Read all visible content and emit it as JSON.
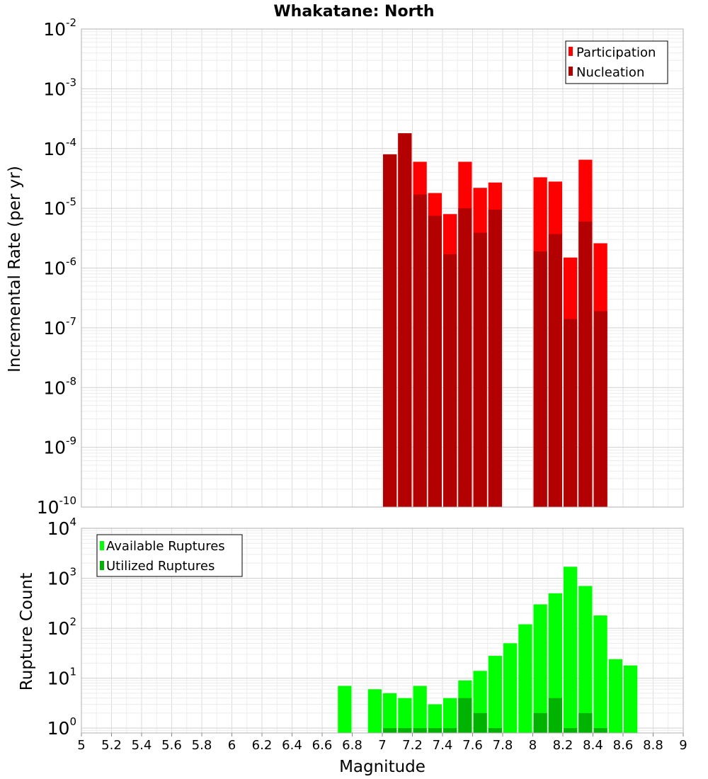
{
  "chart_data": [
    {
      "type": "bar",
      "title": "Whakatane: North",
      "ylabel": "Incremental Rate (per yr)",
      "xlabel": "",
      "yscale": "log",
      "xlim": [
        5,
        9
      ],
      "ylim": [
        1e-10,
        0.01
      ],
      "ytick_labels": [
        {
          "base": "10",
          "exp": "-10"
        },
        {
          "base": "10",
          "exp": "-9"
        },
        {
          "base": "10",
          "exp": "-8"
        },
        {
          "base": "10",
          "exp": "-7"
        },
        {
          "base": "10",
          "exp": "-6"
        },
        {
          "base": "10",
          "exp": "-5"
        },
        {
          "base": "10",
          "exp": "-4"
        },
        {
          "base": "10",
          "exp": "-3"
        },
        {
          "base": "10",
          "exp": "-2"
        }
      ],
      "legend_position": "top-right",
      "series": [
        {
          "name": "Participation",
          "color": "#ff0000",
          "x": [
            7.0,
            7.1,
            7.2,
            7.3,
            7.4,
            7.5,
            7.6,
            7.7,
            8.0,
            8.1,
            8.2,
            8.3,
            8.4
          ],
          "values": [
            8e-05,
            0.00018,
            6e-05,
            1.8e-05,
            8e-06,
            6e-05,
            2.2e-05,
            2.7e-05,
            3.3e-05,
            2.8e-05,
            1.5e-06,
            6.5e-05,
            2.6e-06
          ]
        },
        {
          "name": "Nucleation",
          "color": "#b30000",
          "x": [
            7.0,
            7.1,
            7.2,
            7.3,
            7.4,
            7.5,
            7.6,
            7.7,
            8.0,
            8.1,
            8.2,
            8.3,
            8.4
          ],
          "values": [
            8e-05,
            0.00018,
            1.7e-05,
            7.5e-06,
            1.7e-06,
            1e-05,
            3.9e-06,
            9.5e-06,
            1.9e-06,
            3.7e-06,
            1.4e-07,
            6e-06,
            1.9e-07
          ]
        }
      ]
    },
    {
      "type": "bar",
      "title": "",
      "ylabel": "Rupture Count",
      "xlabel": "Magnitude",
      "yscale": "log",
      "xlim": [
        5,
        9
      ],
      "ylim": [
        0.8,
        10000
      ],
      "ytick_labels": [
        {
          "base": "10",
          "exp": "0",
          "value": 1
        },
        {
          "base": "10",
          "exp": "1",
          "value": 10
        },
        {
          "base": "10",
          "exp": "2",
          "value": 100
        },
        {
          "base": "10",
          "exp": "3",
          "value": 1000
        },
        {
          "base": "10",
          "exp": "4",
          "value": 10000
        }
      ],
      "xtick_labels": [
        "5",
        "5.2",
        "5.4",
        "5.6",
        "5.8",
        "6",
        "6.2",
        "6.4",
        "6.6",
        "6.8",
        "7",
        "7.2",
        "7.4",
        "7.6",
        "7.8",
        "8",
        "8.2",
        "8.4",
        "8.6",
        "8.8",
        "9"
      ],
      "legend_position": "top-left",
      "series": [
        {
          "name": "Available Ruptures",
          "color": "#00ff00",
          "x": [
            6.7,
            6.9,
            7.0,
            7.1,
            7.2,
            7.3,
            7.4,
            7.5,
            7.6,
            7.7,
            7.8,
            7.9,
            8.0,
            8.1,
            8.2,
            8.3,
            8.4,
            8.5,
            8.6
          ],
          "values": [
            7,
            6,
            5,
            4,
            7,
            3,
            4,
            9,
            14,
            28,
            50,
            120,
            300,
            500,
            1700,
            700,
            180,
            24,
            18
          ]
        },
        {
          "name": "Utilized Ruptures",
          "color": "#00b300",
          "x": [
            7.0,
            7.1,
            7.2,
            7.3,
            7.4,
            7.5,
            7.6,
            7.7,
            8.0,
            8.1,
            8.2,
            8.3,
            8.4
          ],
          "values": [
            1,
            1,
            1,
            1,
            1,
            4,
            2,
            1,
            2,
            4,
            1,
            2,
            1
          ]
        }
      ]
    }
  ]
}
